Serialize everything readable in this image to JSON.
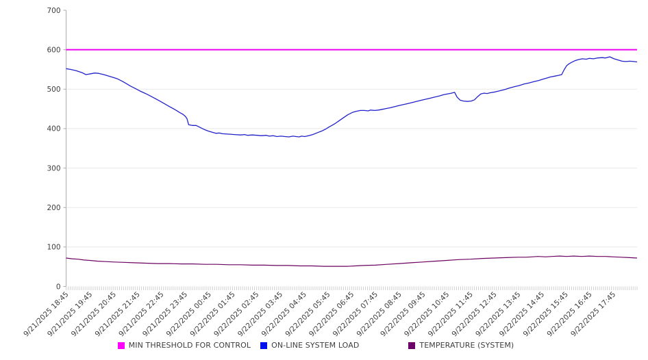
{
  "chart_data": {
    "type": "line",
    "title": "",
    "xlabel": "",
    "ylabel": "",
    "grid": true,
    "legend_position": "bottom",
    "x_axis": {
      "total_minutes": 1440,
      "minor_tick_minutes": 5,
      "label_interval_minutes": 60,
      "labels": [
        "9/21/2025 18:45",
        "9/21/2025 19:45",
        "9/21/2025 20:45",
        "9/21/2025 21:45",
        "9/21/2025 22:45",
        "9/21/2025 23:45",
        "9/22/2025 00:45",
        "9/22/2025 01:45",
        "9/22/2025 02:45",
        "9/22/2025 03:45",
        "9/22/2025 04:45",
        "9/22/2025 05:45",
        "9/22/2025 06:45",
        "9/22/2025 07:45",
        "9/22/2025 08:45",
        "9/22/2025 09:45",
        "9/22/2025 10:45",
        "9/22/2025 11:45",
        "9/22/2025 12:45",
        "9/22/2025 13:45",
        "9/22/2025 14:45",
        "9/22/2025 15:45",
        "9/22/2025 16:45",
        "9/22/2025 17:45"
      ]
    },
    "y_axis": {
      "min": 0,
      "max": 700,
      "tick_step": 100,
      "ticks": [
        0,
        100,
        200,
        300,
        400,
        500,
        600,
        700
      ]
    },
    "colors": {
      "gridline": "#e8e8e8",
      "axis": "#ababab",
      "minor_tick": "#bfbfbf",
      "tick_text": "#3c3c3c"
    },
    "series": [
      {
        "name": "MIN THRESHOLD FOR CONTROL",
        "color": "#EE00EE",
        "swatch_color": "#FF00FF",
        "width": 2,
        "type": "constant",
        "value": 600
      },
      {
        "name": "ON-LINE SYSTEM LOAD",
        "color": "#2121CB",
        "swatch_color": "#0011EE",
        "width": 1.3,
        "type": "points",
        "points": [
          [
            0,
            552
          ],
          [
            12,
            550
          ],
          [
            25,
            547
          ],
          [
            40,
            542
          ],
          [
            50,
            537
          ],
          [
            62,
            539
          ],
          [
            72,
            541
          ],
          [
            82,
            540
          ],
          [
            95,
            537
          ],
          [
            105,
            534
          ],
          [
            118,
            530
          ],
          [
            130,
            526
          ],
          [
            142,
            520
          ],
          [
            152,
            514
          ],
          [
            162,
            508
          ],
          [
            172,
            503
          ],
          [
            185,
            496
          ],
          [
            200,
            489
          ],
          [
            212,
            483
          ],
          [
            225,
            476
          ],
          [
            238,
            469
          ],
          [
            250,
            462
          ],
          [
            262,
            455
          ],
          [
            275,
            448
          ],
          [
            288,
            440
          ],
          [
            295,
            436
          ],
          [
            301,
            431
          ],
          [
            305,
            425
          ],
          [
            309,
            410
          ],
          [
            318,
            408
          ],
          [
            328,
            408
          ],
          [
            338,
            403
          ],
          [
            348,
            398
          ],
          [
            358,
            394
          ],
          [
            368,
            391
          ],
          [
            378,
            388
          ],
          [
            386,
            389
          ],
          [
            394,
            387
          ],
          [
            410,
            386
          ],
          [
            425,
            385
          ],
          [
            440,
            384
          ],
          [
            450,
            385
          ],
          [
            458,
            383
          ],
          [
            470,
            384
          ],
          [
            482,
            383
          ],
          [
            492,
            382
          ],
          [
            505,
            383
          ],
          [
            512,
            381
          ],
          [
            522,
            382
          ],
          [
            532,
            380
          ],
          [
            542,
            381
          ],
          [
            552,
            380
          ],
          [
            562,
            379
          ],
          [
            572,
            381
          ],
          [
            580,
            380
          ],
          [
            588,
            379
          ],
          [
            594,
            381
          ],
          [
            602,
            380
          ],
          [
            612,
            382
          ],
          [
            622,
            385
          ],
          [
            632,
            389
          ],
          [
            645,
            394
          ],
          [
            655,
            399
          ],
          [
            663,
            404
          ],
          [
            672,
            409
          ],
          [
            680,
            414
          ],
          [
            690,
            421
          ],
          [
            700,
            428
          ],
          [
            710,
            435
          ],
          [
            722,
            441
          ],
          [
            732,
            444
          ],
          [
            742,
            446
          ],
          [
            752,
            446
          ],
          [
            762,
            445
          ],
          [
            768,
            447
          ],
          [
            778,
            446
          ],
          [
            788,
            447
          ],
          [
            798,
            449
          ],
          [
            808,
            451
          ],
          [
            818,
            453
          ],
          [
            830,
            456
          ],
          [
            842,
            459
          ],
          [
            855,
            462
          ],
          [
            868,
            465
          ],
          [
            880,
            468
          ],
          [
            892,
            471
          ],
          [
            905,
            474
          ],
          [
            918,
            477
          ],
          [
            930,
            480
          ],
          [
            942,
            483
          ],
          [
            952,
            486
          ],
          [
            962,
            488
          ],
          [
            972,
            490
          ],
          [
            980,
            492
          ],
          [
            986,
            480
          ],
          [
            994,
            472
          ],
          [
            1002,
            470
          ],
          [
            1012,
            469
          ],
          [
            1022,
            470
          ],
          [
            1030,
            473
          ],
          [
            1038,
            481
          ],
          [
            1046,
            488
          ],
          [
            1054,
            490
          ],
          [
            1062,
            489
          ],
          [
            1070,
            491
          ],
          [
            1082,
            493
          ],
          [
            1094,
            496
          ],
          [
            1106,
            499
          ],
          [
            1118,
            503
          ],
          [
            1130,
            506
          ],
          [
            1142,
            509
          ],
          [
            1155,
            513
          ],
          [
            1168,
            516
          ],
          [
            1180,
            519
          ],
          [
            1192,
            522
          ],
          [
            1205,
            526
          ],
          [
            1212,
            528
          ],
          [
            1222,
            531
          ],
          [
            1232,
            533
          ],
          [
            1242,
            535
          ],
          [
            1250,
            537
          ],
          [
            1256,
            549
          ],
          [
            1262,
            559
          ],
          [
            1268,
            564
          ],
          [
            1275,
            568
          ],
          [
            1283,
            572
          ],
          [
            1292,
            575
          ],
          [
            1302,
            577
          ],
          [
            1312,
            576
          ],
          [
            1320,
            578
          ],
          [
            1330,
            577
          ],
          [
            1340,
            579
          ],
          [
            1352,
            580
          ],
          [
            1360,
            579
          ],
          [
            1371,
            582
          ],
          [
            1382,
            577
          ],
          [
            1392,
            574
          ],
          [
            1402,
            571
          ],
          [
            1412,
            570
          ],
          [
            1422,
            571
          ],
          [
            1432,
            570
          ],
          [
            1440,
            569
          ]
        ]
      },
      {
        "name": "TEMPERATURE (SYSTEM)",
        "color": "#6C0060",
        "swatch_color": "#6B0069",
        "width": 1.2,
        "type": "points",
        "points": [
          [
            0,
            72
          ],
          [
            15,
            70
          ],
          [
            30,
            69
          ],
          [
            45,
            67
          ],
          [
            60,
            66
          ],
          [
            80,
            64
          ],
          [
            100,
            63
          ],
          [
            120,
            62
          ],
          [
            145,
            61
          ],
          [
            170,
            60
          ],
          [
            200,
            59
          ],
          [
            230,
            58
          ],
          [
            260,
            58
          ],
          [
            290,
            57
          ],
          [
            320,
            57
          ],
          [
            350,
            56
          ],
          [
            380,
            56
          ],
          [
            410,
            55
          ],
          [
            440,
            55
          ],
          [
            470,
            54
          ],
          [
            500,
            54
          ],
          [
            530,
            53
          ],
          [
            560,
            53
          ],
          [
            590,
            52
          ],
          [
            620,
            52
          ],
          [
            650,
            51
          ],
          [
            680,
            51
          ],
          [
            710,
            51
          ],
          [
            730,
            52
          ],
          [
            750,
            53
          ],
          [
            780,
            54
          ],
          [
            810,
            56
          ],
          [
            840,
            58
          ],
          [
            870,
            60
          ],
          [
            900,
            62
          ],
          [
            930,
            64
          ],
          [
            960,
            66
          ],
          [
            990,
            68
          ],
          [
            1020,
            69
          ],
          [
            1050,
            71
          ],
          [
            1080,
            72
          ],
          [
            1110,
            73
          ],
          [
            1140,
            74
          ],
          [
            1160,
            74
          ],
          [
            1175,
            75
          ],
          [
            1190,
            76
          ],
          [
            1210,
            75
          ],
          [
            1225,
            76
          ],
          [
            1245,
            77
          ],
          [
            1262,
            76
          ],
          [
            1280,
            77
          ],
          [
            1300,
            76
          ],
          [
            1320,
            77
          ],
          [
            1340,
            76
          ],
          [
            1360,
            76
          ],
          [
            1380,
            75
          ],
          [
            1400,
            74
          ],
          [
            1420,
            73
          ],
          [
            1440,
            72
          ]
        ]
      }
    ]
  }
}
